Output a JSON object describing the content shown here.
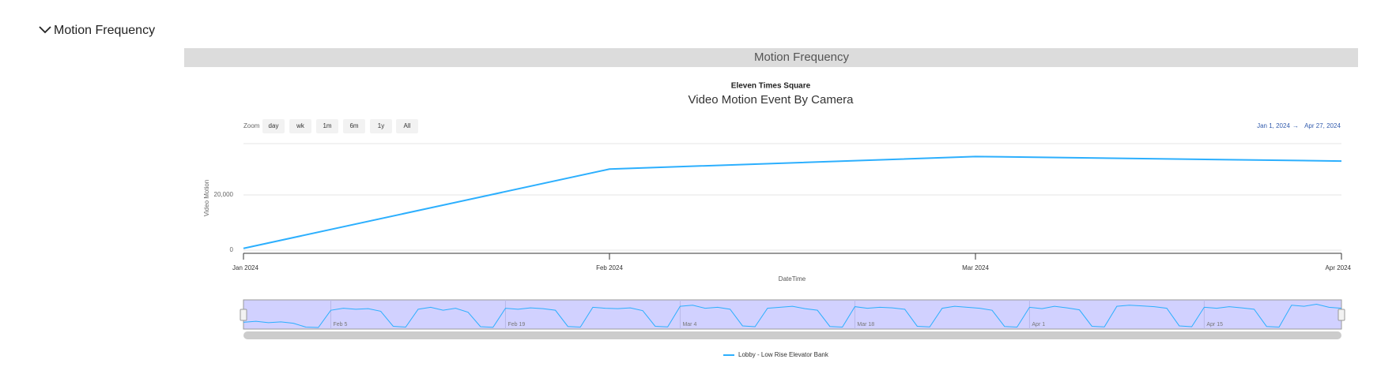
{
  "section": {
    "title": "Motion Frequency"
  },
  "panel": {
    "title": "Motion Frequency"
  },
  "controls": {
    "zoom_label": "Zoom",
    "zoom_buttons": [
      "day",
      "wk",
      "1m",
      "6m",
      "1y",
      "All"
    ],
    "range_from": "Jan 1, 2024",
    "range_separator": "→",
    "range_to": "Apr 27, 2024"
  },
  "chart_data": {
    "type": "line",
    "title": "Eleven Times Square",
    "subtitle": "Video Motion Event By Camera",
    "x_label": "DateTime",
    "y_label": "Video Motion",
    "categories": [
      "Jan 2024",
      "Feb 2024",
      "Mar 2024",
      "Apr 2024"
    ],
    "series": [
      {
        "name": "Lobby - Low Rise Elevator Bank",
        "color": "#2caffe",
        "values": [
          650,
          29350,
          33900,
          32260
        ]
      }
    ],
    "ylim": [
      0,
      40000
    ],
    "yticks": [
      0,
      {
        "value": 20000,
        "label": "20,000"
      }
    ],
    "grid": true,
    "navigator": {
      "xlim": [
        0,
        88
      ],
      "ylim": [
        0,
        1300
      ],
      "xticks": [
        {
          "value": 7,
          "label": "Feb 5"
        },
        {
          "value": 21,
          "label": "Feb 19"
        },
        {
          "value": 35,
          "label": "Mar 4"
        },
        {
          "value": 49,
          "label": "Mar 18"
        },
        {
          "value": 63,
          "label": "Apr 1"
        },
        {
          "value": 77,
          "label": "Apr 15"
        }
      ],
      "values": [
        300,
        350,
        280,
        320,
        250,
        60,
        40,
        900,
        1000,
        950,
        980,
        850,
        100,
        60,
        950,
        1050,
        900,
        1000,
        800,
        80,
        50,
        1000,
        950,
        1020,
        980,
        900,
        90,
        60,
        1050,
        1000,
        980,
        1020,
        880,
        100,
        70,
        1100,
        1150,
        1000,
        1050,
        950,
        120,
        80,
        1000,
        1050,
        1100,
        980,
        900,
        90,
        60,
        1080,
        1000,
        1050,
        1020,
        950,
        100,
        70,
        1000,
        1100,
        1050,
        1000,
        900,
        90,
        60,
        1050,
        980,
        1100,
        1020,
        920,
        100,
        70,
        1100,
        1150,
        1120,
        1080,
        1000,
        120,
        80,
        1050,
        1000,
        1080,
        1020,
        950,
        90,
        60,
        1150,
        1100,
        1200,
        1050,
        1000
      ]
    }
  }
}
